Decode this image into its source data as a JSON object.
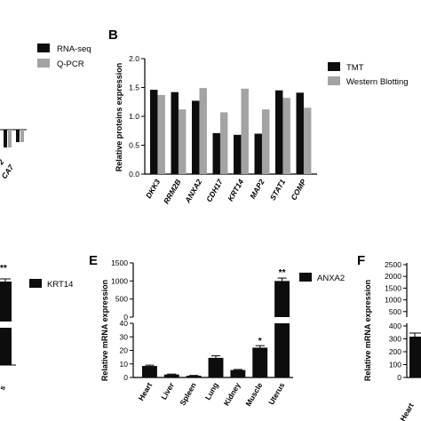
{
  "colors": {
    "primary": "#0d0d0d",
    "secondary": "#a3a3a3",
    "axis": "#000000"
  },
  "panel_a": {
    "legend": [
      "RNA-seq",
      "Q-PCR"
    ],
    "visible_tick": "CA7",
    "visible_tick_partial": "2"
  },
  "panel_c": {
    "legend": [
      "KRT14"
    ],
    "star": "**",
    "visible_tick_partial": "s"
  },
  "panel_f": {
    "letter": "F",
    "ylabel": "Relative mRNA expression",
    "yticks": [
      "2500",
      "2000",
      "1500",
      "1000",
      "500",
      "400",
      "300",
      "200",
      "100",
      "0"
    ],
    "visible_category": "Heart"
  },
  "chart_data": [
    {
      "panel": "B",
      "type": "bar",
      "ylabel": "Relative proteins expression",
      "ylim": [
        0,
        2.0
      ],
      "yticks": [
        "0.0",
        "0.5",
        "1.0",
        "1.5",
        "2.0"
      ],
      "categories": [
        "DKK3",
        "RRM2B",
        "ANXA2",
        "CDH17",
        "KRT14",
        "MAP2",
        "STAT1",
        "COMP"
      ],
      "series": [
        {
          "name": "TMT",
          "values": [
            1.46,
            1.42,
            1.27,
            0.71,
            0.68,
            0.7,
            1.45,
            1.41
          ]
        },
        {
          "name": "Western Blotting",
          "values": [
            1.37,
            1.12,
            1.49,
            1.07,
            1.48,
            1.12,
            1.32,
            1.15
          ]
        }
      ],
      "legend_position": "top-right"
    },
    {
      "panel": "E",
      "type": "bar",
      "ylabel": "Relative mRNA expression",
      "yticks_lower": [
        "0",
        "10",
        "20",
        "30",
        "40"
      ],
      "yticks_upper": [
        "0",
        "500",
        "1000",
        "1500"
      ],
      "broken_axis": true,
      "categories": [
        "Heart",
        "Liver",
        "Spleen",
        "Lung",
        "Kidney",
        "Muscle",
        "Uterus"
      ],
      "series": [
        {
          "name": "ANXA2",
          "values": [
            8.5,
            2.2,
            1.3,
            14.5,
            5.5,
            22,
            1000
          ],
          "errors": [
            0.6,
            0.3,
            0.2,
            1.5,
            0.4,
            1.5,
            80
          ]
        }
      ],
      "annotations": [
        "",
        "",
        "",
        "",
        "",
        "*",
        "**"
      ],
      "legend_position": "top-right"
    }
  ]
}
